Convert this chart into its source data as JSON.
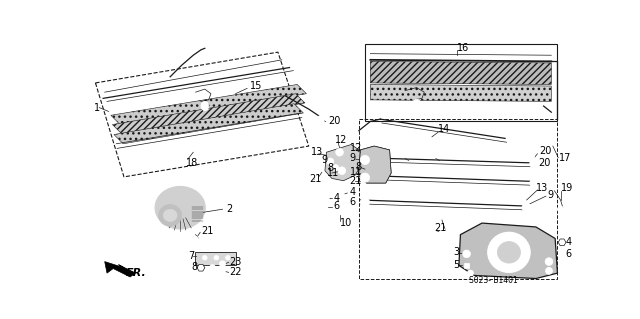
{
  "bg_color": "#ffffff",
  "fig_width": 6.4,
  "fig_height": 3.19,
  "dpi": 100,
  "line_color": "#1a1a1a",
  "hatch_color": "#888888",
  "label_fontsize": 7.0,
  "small_fontsize": 5.5,
  "catalog": "S023- B1401"
}
